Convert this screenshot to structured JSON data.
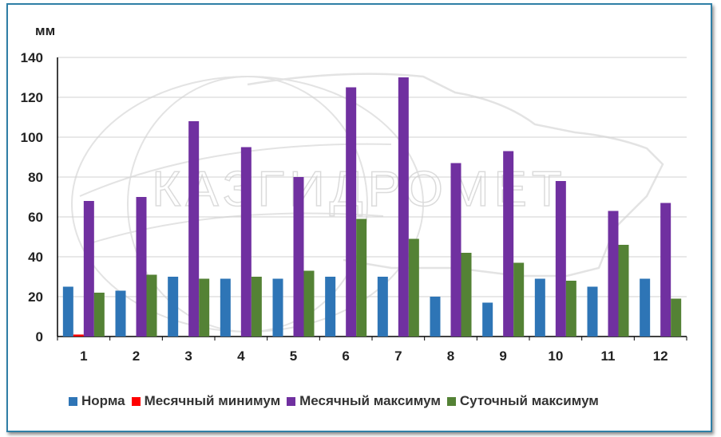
{
  "chart_data": {
    "type": "bar",
    "unit_label": "мм",
    "categories": [
      "1",
      "2",
      "3",
      "4",
      "5",
      "6",
      "7",
      "8",
      "9",
      "10",
      "11",
      "12"
    ],
    "ylim": [
      0,
      140
    ],
    "yticks": [
      "0",
      "20",
      "40",
      "60",
      "80",
      "100",
      "120",
      "140"
    ],
    "grid": true,
    "legend_position": "bottom",
    "watermark_text": "КАЗГИДРОМЕТ",
    "series": [
      {
        "name": "Норма",
        "color": "#2e75b6",
        "values": [
          25,
          23,
          30,
          29,
          29,
          30,
          30,
          20,
          17,
          29,
          25,
          29
        ]
      },
      {
        "name": "Месячный минимум",
        "color": "#ff0000",
        "values": [
          1,
          0,
          0,
          0,
          0,
          0,
          0,
          0,
          0,
          0,
          0,
          0
        ]
      },
      {
        "name": "Месячный максимум",
        "color": "#7030a0",
        "values": [
          68,
          70,
          108,
          95,
          80,
          125,
          130,
          87,
          93,
          78,
          63,
          67
        ]
      },
      {
        "name": "Суточный максимум",
        "color": "#548235",
        "values": [
          22,
          31,
          29,
          30,
          33,
          59,
          49,
          42,
          37,
          28,
          46,
          19
        ]
      }
    ]
  }
}
